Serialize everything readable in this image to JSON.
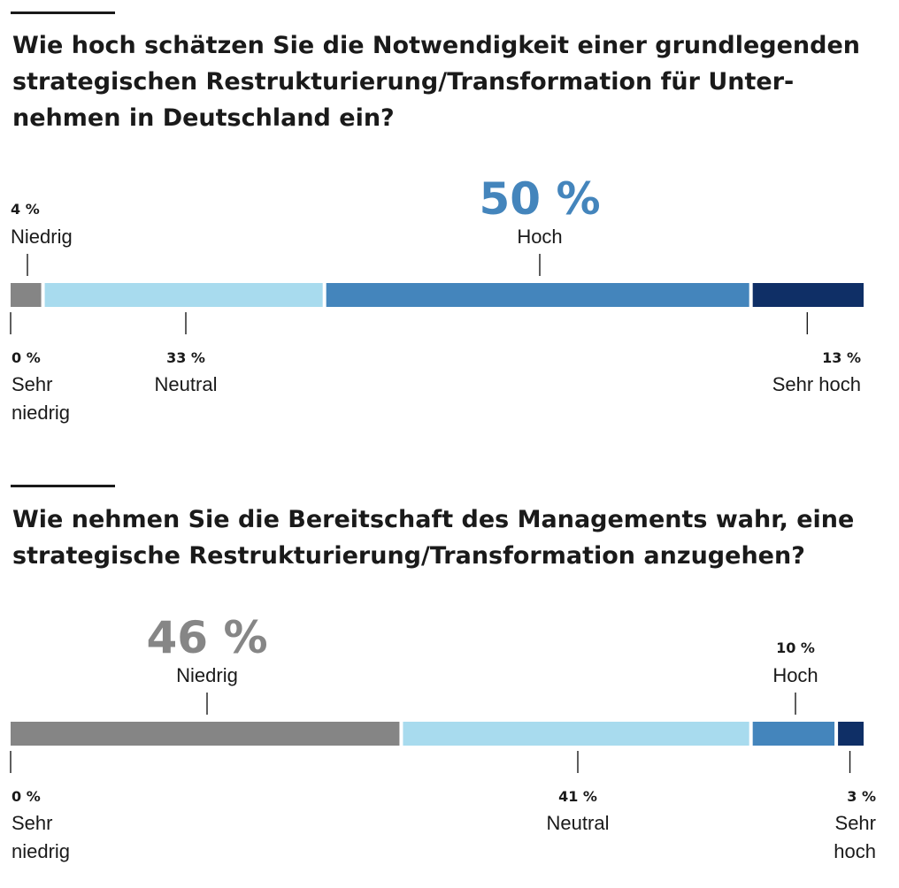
{
  "chart_data": [
    {
      "type": "bar",
      "orientation": "horizontal-stacked",
      "title": "Wie hoch schätzen Sie die Notwendigkeit einer grundlegenden strategischen Restrukturierung/Transformation für Unter­nehmen in Deutschland ein?",
      "categories": [
        "Sehr niedrig",
        "Niedrig",
        "Neutral",
        "Hoch",
        "Sehr hoch"
      ],
      "values": [
        0,
        4,
        33,
        50,
        13
      ],
      "labels": [
        "0%",
        "4%",
        "33%",
        "50%",
        "13%"
      ],
      "colors": [
        "#8a8a8a",
        "#858585",
        "#a8dbee",
        "#4485bc",
        "#0f2f66"
      ],
      "highlight": {
        "index": 3,
        "color": "#4485bc"
      },
      "unit": "%"
    },
    {
      "type": "bar",
      "orientation": "horizontal-stacked",
      "title": "Wie nehmen Sie die Bereitschaft des Managements wahr, eine strategische Restrukturierung/Transformation anzugehen?",
      "categories": [
        "Sehr niedrig",
        "Niedrig",
        "Neutral",
        "Hoch",
        "Sehr hoch"
      ],
      "values": [
        0,
        46,
        41,
        10,
        3
      ],
      "labels": [
        "0%",
        "46%",
        "41%",
        "10%",
        "3%"
      ],
      "colors": [
        "#8a8a8a",
        "#858585",
        "#a8dbee",
        "#4485bc",
        "#0f2f66"
      ],
      "highlight": {
        "index": 1,
        "color": "#868686"
      },
      "unit": "%"
    }
  ]
}
